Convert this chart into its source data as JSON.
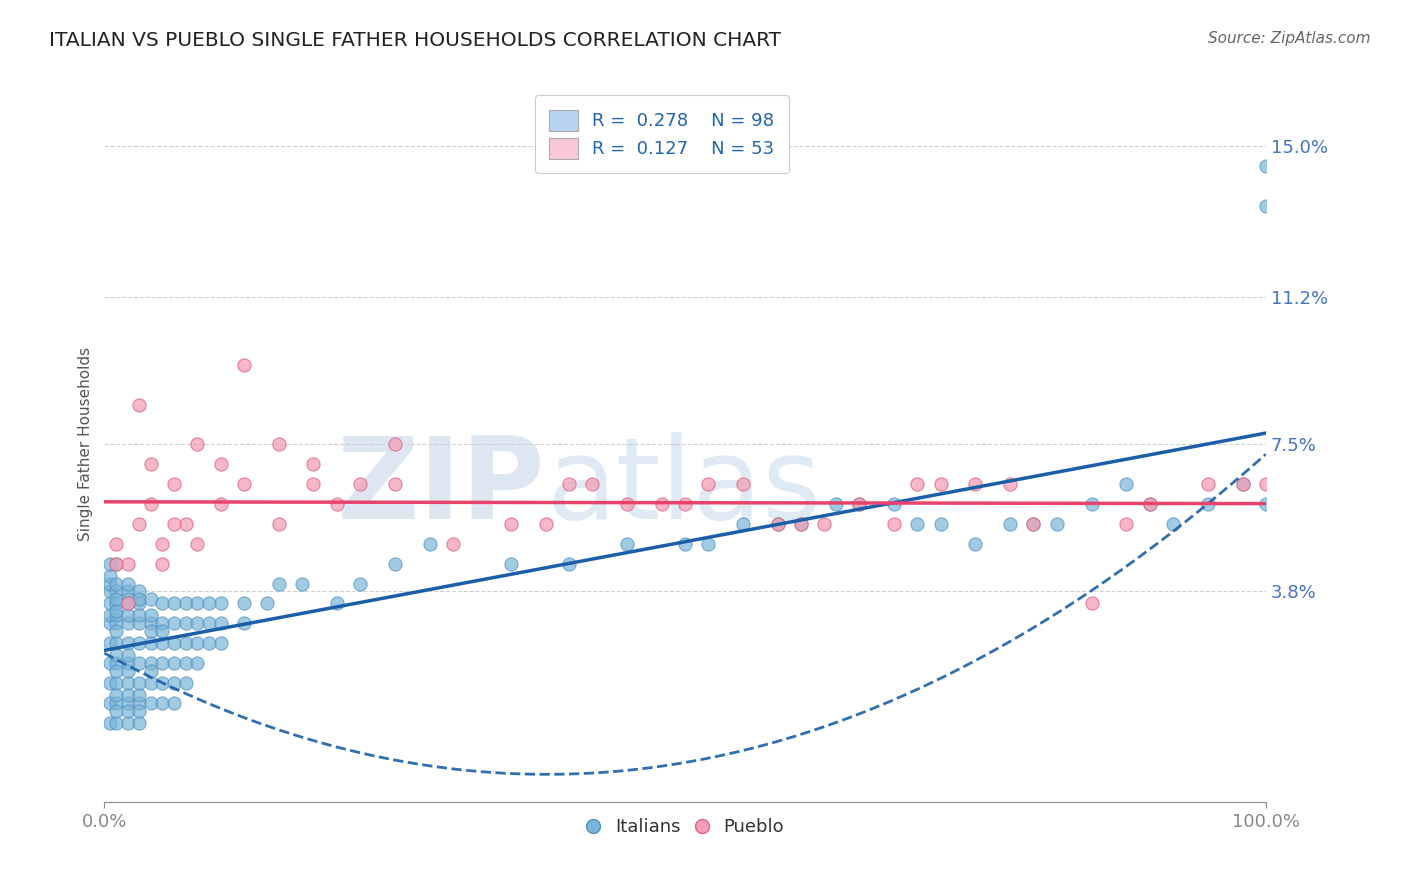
{
  "title": "ITALIAN VS PUEBLO SINGLE FATHER HOUSEHOLDS CORRELATION CHART",
  "source": "Source: ZipAtlas.com",
  "ylabel": "Single Father Households",
  "watermark_zip": "ZIP",
  "watermark_atlas": "atlas",
  "xlim": [
    0,
    100
  ],
  "ylim": [
    -1.5,
    16.5
  ],
  "ytick_vals": [
    3.8,
    7.5,
    11.2,
    15.0
  ],
  "ytick_labels": [
    "3.8%",
    "7.5%",
    "11.2%",
    "15.0%"
  ],
  "xtick_vals": [
    0,
    100
  ],
  "xtick_labels": [
    "0.0%",
    "100.0%"
  ],
  "scatter_color_italians": "#7ab4d8",
  "scatter_color_pueblo": "#f4a0b8",
  "scatter_edge_italians": "#5090c0",
  "scatter_edge_pueblo": "#e06080",
  "line_color_italians": "#1a5fa8",
  "line_color_pueblo": "#e8436a",
  "tick_color": "#4472c4",
  "grid_color": "#d0d0d0",
  "background_color": "#ffffff",
  "legend_blue_fill": "#b8d4f0",
  "legend_pink_fill": "#f8c8d8",
  "italians_x": [
    0.5,
    0.5,
    0.5,
    0.5,
    0.5,
    0.5,
    0.5,
    0.5,
    0.5,
    0.5,
    0.5,
    0.5,
    1,
    1,
    1,
    1,
    1,
    1,
    1,
    1,
    1,
    1,
    1,
    1,
    1,
    1,
    1,
    1,
    1,
    1,
    2,
    2,
    2,
    2,
    2,
    2,
    2,
    2,
    2,
    2,
    2,
    2,
    2,
    2,
    2,
    3,
    3,
    3,
    3,
    3,
    3,
    3,
    3,
    3,
    3,
    3,
    3,
    4,
    4,
    4,
    4,
    4,
    4,
    4,
    4,
    4,
    5,
    5,
    5,
    5,
    5,
    5,
    5,
    6,
    6,
    6,
    6,
    6,
    6,
    7,
    7,
    7,
    7,
    7,
    8,
    8,
    8,
    8,
    9,
    9,
    9,
    10,
    10,
    10,
    12,
    12,
    14,
    15,
    17,
    20,
    22,
    25,
    28,
    35,
    40,
    45,
    50,
    52,
    55,
    58,
    60,
    63,
    65,
    68,
    70,
    72,
    75,
    78,
    80,
    82,
    85,
    88,
    90,
    92,
    95,
    98,
    100,
    100,
    100
  ],
  "italians_y": [
    1.5,
    2.0,
    2.5,
    3.0,
    3.2,
    3.5,
    3.8,
    4.0,
    4.2,
    4.5,
    1.0,
    0.5,
    0.5,
    1.0,
    1.5,
    2.0,
    2.5,
    3.0,
    3.2,
    3.5,
    3.8,
    4.0,
    4.5,
    2.2,
    1.8,
    3.3,
    2.8,
    1.2,
    0.8,
    3.6,
    0.5,
    1.0,
    1.5,
    2.0,
    2.5,
    3.0,
    3.2,
    3.5,
    3.8,
    4.0,
    1.2,
    0.8,
    2.2,
    1.8,
    3.6,
    0.5,
    1.0,
    1.5,
    2.0,
    2.5,
    3.0,
    3.2,
    3.5,
    3.8,
    1.2,
    0.8,
    3.6,
    1.0,
    1.5,
    2.0,
    2.5,
    3.0,
    3.2,
    1.8,
    2.8,
    3.6,
    1.5,
    2.0,
    2.5,
    3.0,
    3.5,
    1.0,
    2.8,
    1.5,
    2.0,
    2.5,
    3.0,
    1.0,
    3.5,
    2.0,
    2.5,
    3.0,
    1.5,
    3.5,
    2.0,
    2.5,
    3.0,
    3.5,
    2.5,
    3.0,
    3.5,
    2.5,
    3.0,
    3.5,
    3.0,
    3.5,
    3.5,
    4.0,
    4.0,
    3.5,
    4.0,
    4.5,
    5.0,
    4.5,
    4.5,
    5.0,
    5.0,
    5.0,
    5.5,
    5.5,
    5.5,
    6.0,
    6.0,
    6.0,
    5.5,
    5.5,
    5.0,
    5.5,
    5.5,
    5.5,
    6.0,
    6.5,
    6.0,
    5.5,
    6.0,
    6.5,
    13.5,
    14.5,
    6.0
  ],
  "pueblo_x": [
    1,
    2,
    3,
    4,
    5,
    6,
    7,
    8,
    10,
    12,
    15,
    18,
    2,
    3,
    5,
    8,
    12,
    18,
    22,
    25,
    1,
    4,
    6,
    10,
    15,
    20,
    25,
    30,
    35,
    38,
    40,
    42,
    45,
    48,
    50,
    52,
    55,
    58,
    60,
    62,
    65,
    68,
    70,
    72,
    75,
    78,
    80,
    85,
    88,
    90,
    95,
    98,
    100
  ],
  "pueblo_y": [
    5.0,
    4.5,
    5.5,
    6.0,
    5.0,
    6.5,
    5.5,
    7.5,
    6.0,
    9.5,
    7.5,
    6.5,
    3.5,
    8.5,
    4.5,
    5.0,
    6.5,
    7.0,
    6.5,
    6.5,
    4.5,
    7.0,
    5.5,
    7.0,
    5.5,
    6.0,
    7.5,
    5.0,
    5.5,
    5.5,
    6.5,
    6.5,
    6.0,
    6.0,
    6.0,
    6.5,
    6.5,
    5.5,
    5.5,
    5.5,
    6.0,
    5.5,
    6.5,
    6.5,
    6.5,
    6.5,
    5.5,
    3.5,
    5.5,
    6.0,
    6.5,
    6.5,
    6.5
  ]
}
